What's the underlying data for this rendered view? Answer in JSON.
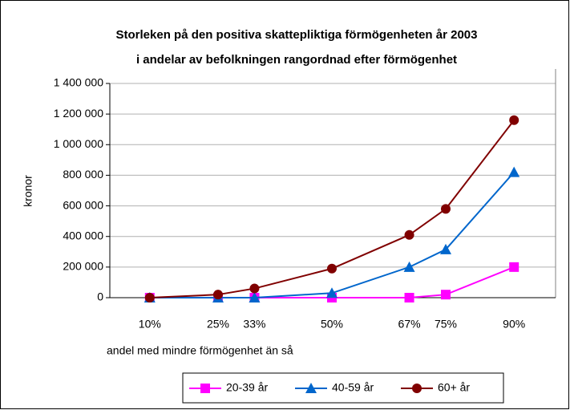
{
  "chart_data": {
    "type": "line",
    "title": "Storleken på den positiva skattepliktiga förmögenheten år 2003",
    "subtitle": "i andelar av befolkningen rangordnad efter förmögenhet",
    "xlabel": "andel med mindre förmögenhet än så",
    "ylabel": "kronor",
    "x": [
      10,
      25,
      33,
      50,
      67,
      75,
      90
    ],
    "xlim": [
      0,
      100
    ],
    "xticks": [
      {
        "value": 10,
        "label": "10%"
      },
      {
        "value": 25,
        "label": "25%"
      },
      {
        "value": 33,
        "label": "33%"
      },
      {
        "value": 50,
        "label": "50%"
      },
      {
        "value": 67,
        "label": "67%"
      },
      {
        "value": 75,
        "label": "75%"
      },
      {
        "value": 90,
        "label": "90%"
      }
    ],
    "ylim": [
      0,
      1400000
    ],
    "yticks": [
      0,
      {
        "value": 200000,
        "label": "200 000"
      },
      {
        "value": 400000,
        "label": "400 000"
      },
      {
        "value": 600000,
        "label": "600 000"
      },
      {
        "value": 800000,
        "label": "800 000"
      },
      {
        "value": 1000000,
        "label": "1 000 000"
      },
      {
        "value": 1200000,
        "label": "1 200 000"
      },
      {
        "value": 1400000,
        "label": "1 400 000"
      }
    ],
    "grid": true,
    "legend": "bottom",
    "series": [
      {
        "name": "20-39 år",
        "color": "#ff00ff",
        "marker": "square",
        "values": [
          0,
          0,
          0,
          0,
          0,
          20000,
          200000
        ]
      },
      {
        "name": "40-59 år",
        "color": "#0066cc",
        "marker": "triangle",
        "values": [
          0,
          0,
          0,
          30000,
          200000,
          315000,
          820000
        ]
      },
      {
        "name": "60+ år",
        "color": "#800000",
        "marker": "circle",
        "values": [
          0,
          20000,
          60000,
          190000,
          410000,
          580000,
          1160000
        ]
      }
    ]
  }
}
